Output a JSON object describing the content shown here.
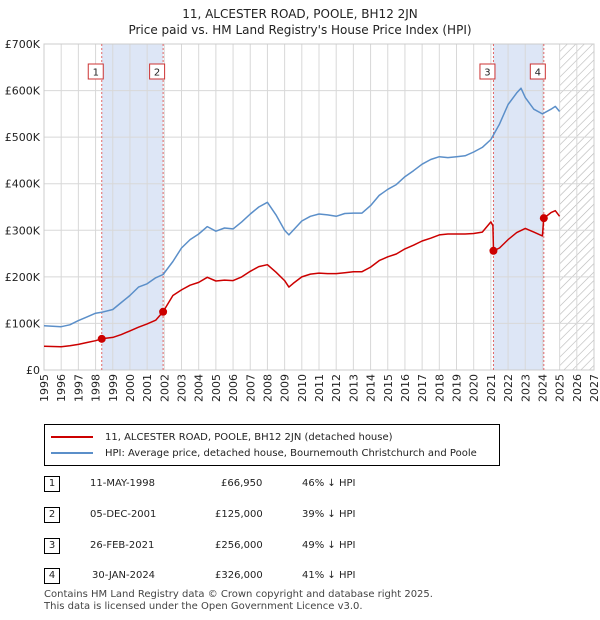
{
  "title": {
    "line1": "11, ALCESTER ROAD, POOLE, BH12 2JN",
    "line2": "Price paid vs. HM Land Registry's House Price Index (HPI)"
  },
  "colors": {
    "price": "#cc0000",
    "hpi": "#5b8fc9",
    "band": "#dde6f6",
    "vline": "#e06666",
    "grid": "#d8d8d8"
  },
  "legend": {
    "price_label": "11, ALCESTER ROAD, POOLE, BH12 2JN (detached house)",
    "hpi_label": "HPI: Average price, detached house, Bournemouth Christchurch and Poole"
  },
  "transactions": [
    {
      "num": "1",
      "date": "11-MAY-1998",
      "price": "£66,950",
      "hpi_diff": "46% ↓ HPI"
    },
    {
      "num": "2",
      "date": "05-DEC-2001",
      "price": "£125,000",
      "hpi_diff": "39% ↓ HPI"
    },
    {
      "num": "3",
      "date": "26-FEB-2021",
      "price": "£256,000",
      "hpi_diff": "49% ↓ HPI"
    },
    {
      "num": "4",
      "date": "30-JAN-2024",
      "price": "£326,000",
      "hpi_diff": "41% ↓ HPI"
    }
  ],
  "footer": {
    "line1": "Contains HM Land Registry data © Crown copyright and database right 2025.",
    "line2": "This data is licensed under the Open Government Licence v3.0."
  },
  "chart_data": {
    "type": "line",
    "xlim": [
      1995,
      2027
    ],
    "ylim": [
      0,
      700000
    ],
    "x_ticks": [
      1995,
      1996,
      1997,
      1998,
      1999,
      2000,
      2001,
      2002,
      2003,
      2004,
      2005,
      2006,
      2007,
      2008,
      2009,
      2010,
      2011,
      2012,
      2013,
      2014,
      2015,
      2016,
      2017,
      2018,
      2019,
      2020,
      2021,
      2022,
      2023,
      2024,
      2025,
      2026,
      2027
    ],
    "y_ticks": [
      {
        "value": 0,
        "label": "£0"
      },
      {
        "value": 100000,
        "label": "£100K"
      },
      {
        "value": 200000,
        "label": "£200K"
      },
      {
        "value": 300000,
        "label": "£300K"
      },
      {
        "value": 400000,
        "label": "£400K"
      },
      {
        "value": 500000,
        "label": "£500K"
      },
      {
        "value": 600000,
        "label": "£600K"
      },
      {
        "value": 700000,
        "label": "£700K"
      }
    ],
    "shaded_bands": [
      {
        "from": 1998.36,
        "to": 2001.93
      },
      {
        "from": 2021.15,
        "to": 2024.08
      }
    ],
    "forecast_hatch_from": 2025.0,
    "markers": [
      {
        "label": "1",
        "x": 1998.36,
        "y": 66950
      },
      {
        "label": "2",
        "x": 2001.93,
        "y": 125000
      },
      {
        "label": "3",
        "x": 2021.15,
        "y": 256000
      },
      {
        "label": "4",
        "x": 2024.08,
        "y": 326000
      }
    ],
    "series": [
      {
        "name": "HPI: Average price, detached house, Bournemouth Christchurch and Poole",
        "x": [
          1995.0,
          1996.0,
          1996.5,
          1997.0,
          1997.5,
          1998.0,
          1998.36,
          1999.0,
          1999.5,
          2000.0,
          2000.5,
          2001.0,
          2001.5,
          2001.93,
          2002.5,
          2003.0,
          2003.5,
          2004.0,
          2004.5,
          2005.0,
          2005.5,
          2006.0,
          2006.5,
          2007.0,
          2007.5,
          2008.0,
          2008.5,
          2009.0,
          2009.25,
          2009.5,
          2010.0,
          2010.5,
          2011.0,
          2011.5,
          2012.0,
          2012.5,
          2013.0,
          2013.5,
          2014.0,
          2014.5,
          2015.0,
          2015.5,
          2016.0,
          2016.5,
          2017.0,
          2017.5,
          2018.0,
          2018.5,
          2019.0,
          2019.5,
          2020.0,
          2020.5,
          2021.0,
          2021.5,
          2022.0,
          2022.5,
          2022.75,
          2023.0,
          2023.5,
          2024.0,
          2024.5,
          2024.75,
          2025.0
        ],
        "y": [
          95000,
          93000,
          97000,
          106000,
          114000,
          122000,
          124000,
          130000,
          145000,
          160000,
          178000,
          185000,
          198000,
          205000,
          233000,
          262000,
          280000,
          292000,
          308000,
          298000,
          305000,
          303000,
          318000,
          335000,
          350000,
          360000,
          333000,
          300000,
          290000,
          300000,
          320000,
          330000,
          335000,
          333000,
          330000,
          336000,
          337000,
          337000,
          353000,
          375000,
          388000,
          398000,
          415000,
          428000,
          442000,
          452000,
          458000,
          456000,
          458000,
          460000,
          468000,
          478000,
          495000,
          528000,
          570000,
          595000,
          605000,
          585000,
          560000,
          550000,
          560000,
          566000,
          555000
        ]
      },
      {
        "name": "11, ALCESTER ROAD, POOLE, BH12 2JN (detached house)",
        "x": [
          1995.0,
          1996.0,
          1996.5,
          1997.0,
          1997.5,
          1998.0,
          1998.36,
          1999.0,
          1999.5,
          2000.0,
          2000.5,
          2001.0,
          2001.5,
          2001.93,
          2002.5,
          2003.0,
          2003.5,
          2004.0,
          2004.5,
          2005.0,
          2005.5,
          2006.0,
          2006.5,
          2007.0,
          2007.5,
          2008.0,
          2008.5,
          2009.0,
          2009.25,
          2009.5,
          2010.0,
          2010.5,
          2011.0,
          2011.5,
          2012.0,
          2012.5,
          2013.0,
          2013.5,
          2014.0,
          2014.5,
          2015.0,
          2015.5,
          2016.0,
          2016.5,
          2017.0,
          2017.5,
          2018.0,
          2018.5,
          2019.0,
          2019.5,
          2020.0,
          2020.5,
          2021.0,
          2021.12,
          2021.15,
          2021.5,
          2022.0,
          2022.5,
          2023.0,
          2023.5,
          2024.0,
          2024.08,
          2024.5,
          2024.75,
          2025.0
        ],
        "y": [
          51000,
          50000,
          52000,
          55000,
          59000,
          63000,
          66950,
          70000,
          76000,
          84000,
          92000,
          99000,
          107000,
          125000,
          160000,
          172000,
          182000,
          188000,
          199000,
          191000,
          193000,
          192000,
          200000,
          212000,
          222000,
          226000,
          210000,
          192000,
          178000,
          186000,
          200000,
          206000,
          208000,
          207000,
          207000,
          209000,
          211000,
          211000,
          221000,
          235000,
          243000,
          249000,
          260000,
          268000,
          277000,
          283000,
          290000,
          292000,
          292000,
          292000,
          293000,
          296000,
          318000,
          310000,
          256000,
          262000,
          280000,
          295000,
          304000,
          296000,
          288000,
          326000,
          338000,
          342000,
          330000
        ]
      }
    ]
  }
}
